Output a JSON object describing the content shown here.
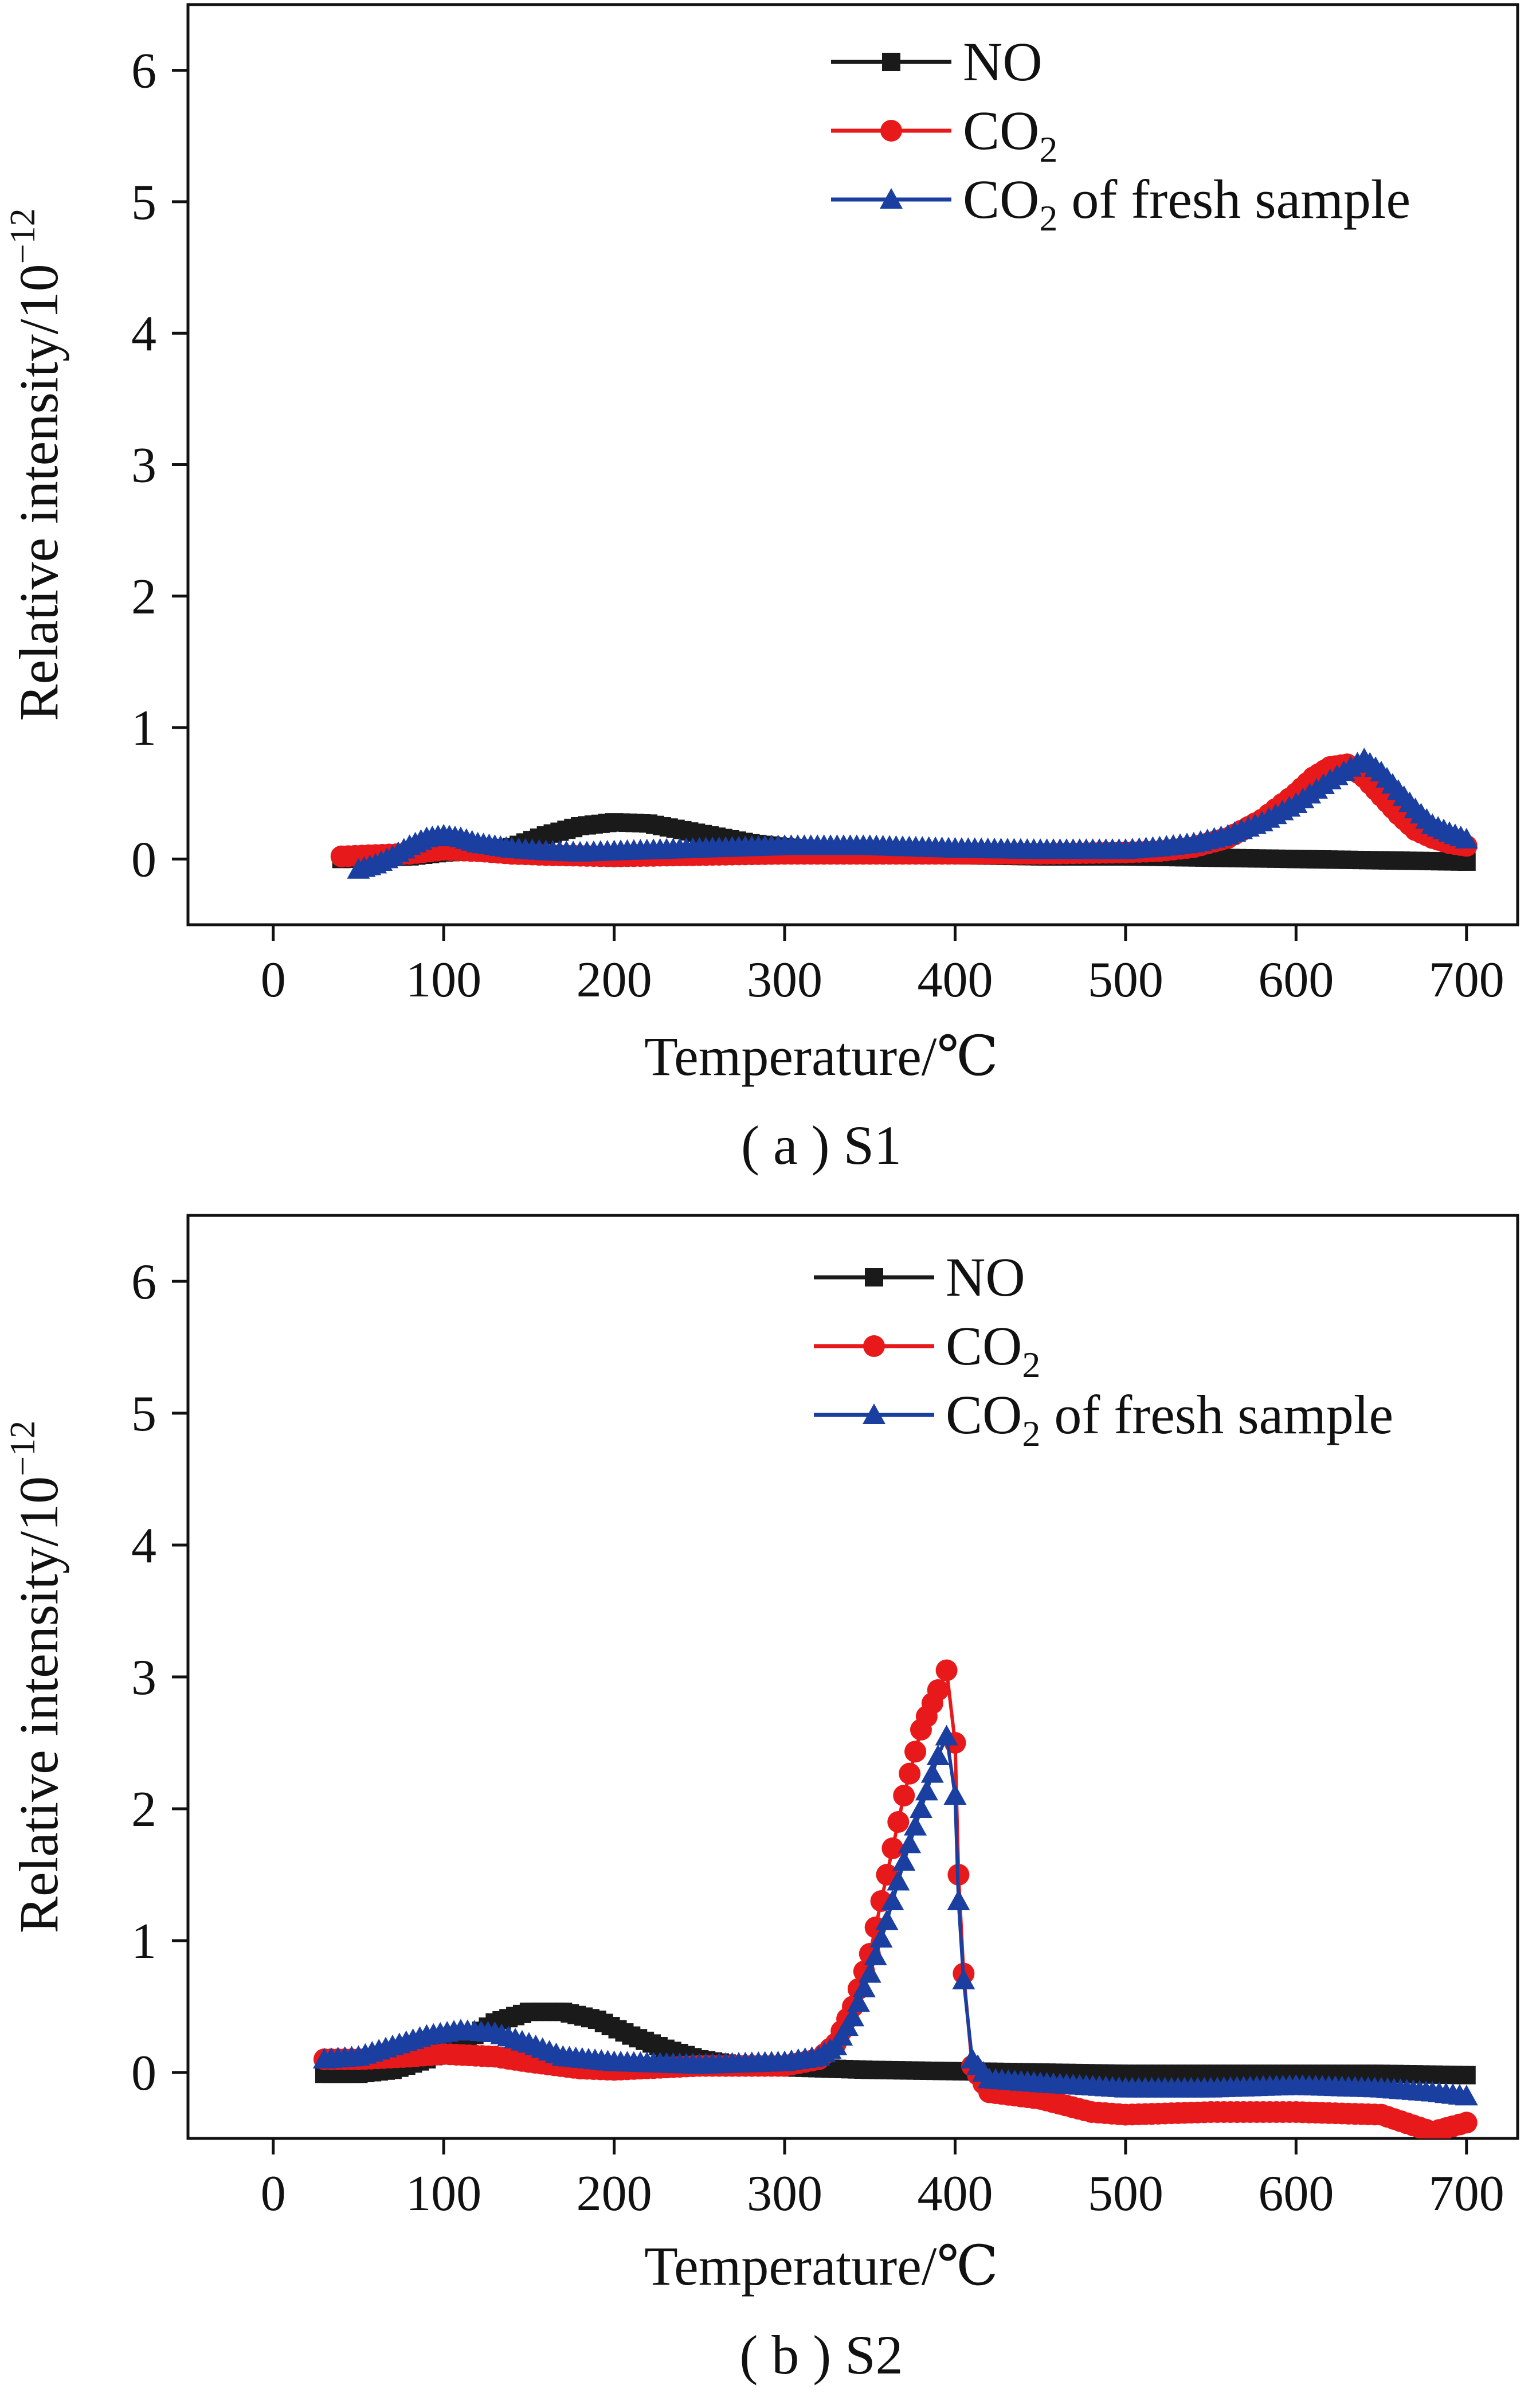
{
  "chart_data": [
    {
      "type": "line",
      "caption": "( a ) S1",
      "xlabel": "Temperature/℃",
      "ylabel": "Relative intensity/10",
      "ylabel_exponent": "−12",
      "xlim": [
        -50,
        730
      ],
      "ylim": [
        -0.5,
        6.5
      ],
      "xticks": [
        0,
        100,
        200,
        300,
        400,
        500,
        600,
        700
      ],
      "yticks": [
        0,
        1,
        2,
        3,
        4,
        5,
        6
      ],
      "grid": false,
      "legend_position": "top-right",
      "series": [
        {
          "name": "NO",
          "name_sub": "",
          "name_rest": "",
          "color": "#1a1a1a",
          "marker": "square",
          "x": [
            40,
            60,
            80,
            100,
            120,
            140,
            160,
            180,
            200,
            220,
            240,
            260,
            280,
            300,
            320,
            340,
            360,
            380,
            400,
            450,
            500,
            550,
            600,
            650,
            700
          ],
          "y": [
            0.0,
            0.01,
            0.02,
            0.05,
            0.06,
            0.09,
            0.18,
            0.25,
            0.28,
            0.27,
            0.22,
            0.17,
            0.12,
            0.09,
            0.07,
            0.05,
            0.04,
            0.03,
            0.03,
            0.02,
            0.02,
            0.01,
            0.0,
            -0.01,
            -0.02
          ]
        },
        {
          "name": "CO",
          "name_sub": "2",
          "name_rest": "",
          "color": "#e8191a",
          "marker": "circle",
          "x": [
            40,
            60,
            80,
            100,
            120,
            140,
            160,
            200,
            250,
            300,
            350,
            400,
            450,
            500,
            520,
            540,
            560,
            580,
            600,
            610,
            620,
            630,
            640,
            650,
            660,
            670,
            680,
            690,
            700
          ],
          "y": [
            0.02,
            0.03,
            0.04,
            0.07,
            0.06,
            0.04,
            0.03,
            0.02,
            0.03,
            0.04,
            0.04,
            0.04,
            0.04,
            0.05,
            0.06,
            0.09,
            0.16,
            0.3,
            0.5,
            0.62,
            0.7,
            0.72,
            0.62,
            0.48,
            0.34,
            0.22,
            0.16,
            0.12,
            0.1
          ]
        },
        {
          "name": "CO",
          "name_sub": "2",
          "name_rest": " of fresh sample",
          "color": "#1a3fa0",
          "marker": "triangle",
          "x": [
            50,
            60,
            70,
            80,
            90,
            100,
            110,
            120,
            130,
            140,
            160,
            180,
            200,
            250,
            300,
            350,
            400,
            450,
            500,
            520,
            540,
            560,
            580,
            600,
            620,
            640,
            650,
            660,
            670,
            680,
            690,
            700
          ],
          "y": [
            -0.08,
            -0.04,
            0.02,
            0.1,
            0.16,
            0.18,
            0.16,
            0.12,
            0.1,
            0.08,
            0.06,
            0.05,
            0.06,
            0.08,
            0.1,
            0.1,
            0.08,
            0.07,
            0.07,
            0.09,
            0.12,
            0.18,
            0.28,
            0.42,
            0.6,
            0.76,
            0.66,
            0.52,
            0.38,
            0.26,
            0.2,
            0.15
          ]
        }
      ]
    },
    {
      "type": "line",
      "caption": "( b ) S2",
      "xlabel": "Temperature/℃",
      "ylabel": "Relative intensity/10",
      "ylabel_exponent": "−12",
      "xlim": [
        -50,
        730
      ],
      "ylim": [
        -0.5,
        6.5
      ],
      "xticks": [
        0,
        100,
        200,
        300,
        400,
        500,
        600,
        700
      ],
      "yticks": [
        0,
        1,
        2,
        3,
        4,
        5,
        6
      ],
      "grid": false,
      "legend_position": "top-right",
      "series": [
        {
          "name": "NO",
          "name_sub": "",
          "name_rest": "",
          "color": "#1a1a1a",
          "marker": "square",
          "x": [
            30,
            50,
            70,
            90,
            110,
            130,
            150,
            170,
            190,
            210,
            230,
            250,
            270,
            300,
            350,
            400,
            450,
            500,
            550,
            600,
            650,
            700
          ],
          "y": [
            -0.01,
            -0.01,
            0.02,
            0.1,
            0.22,
            0.38,
            0.46,
            0.46,
            0.4,
            0.28,
            0.18,
            0.1,
            0.06,
            0.04,
            0.02,
            0.01,
            0.0,
            -0.01,
            -0.01,
            -0.01,
            -0.01,
            -0.02
          ]
        },
        {
          "name": "CO",
          "name_sub": "2",
          "name_rest": "",
          "color": "#e8191a",
          "marker": "circle",
          "x": [
            30,
            50,
            80,
            100,
            130,
            150,
            180,
            200,
            250,
            300,
            320,
            330,
            340,
            350,
            360,
            370,
            380,
            390,
            395,
            400,
            402,
            405,
            410,
            420,
            450,
            480,
            500,
            550,
            600,
            650,
            680,
            700
          ],
          "y": [
            0.1,
            0.1,
            0.12,
            0.14,
            0.12,
            0.08,
            0.03,
            0.02,
            0.05,
            0.05,
            0.1,
            0.22,
            0.5,
            0.9,
            1.5,
            2.1,
            2.6,
            2.9,
            3.05,
            2.5,
            1.5,
            0.75,
            0.05,
            -0.15,
            -0.2,
            -0.3,
            -0.32,
            -0.3,
            -0.3,
            -0.32,
            -0.45,
            -0.38
          ]
        },
        {
          "name": "CO",
          "name_sub": "2",
          "name_rest": " of fresh sample",
          "color": "#1a3fa0",
          "marker": "triangle",
          "x": [
            30,
            50,
            70,
            90,
            110,
            130,
            150,
            170,
            200,
            250,
            300,
            320,
            330,
            340,
            350,
            360,
            370,
            380,
            390,
            395,
            400,
            402,
            405,
            410,
            420,
            450,
            500,
            550,
            600,
            650,
            680,
            700
          ],
          "y": [
            0.1,
            0.12,
            0.2,
            0.28,
            0.32,
            0.3,
            0.22,
            0.12,
            0.08,
            0.06,
            0.08,
            0.12,
            0.2,
            0.42,
            0.75,
            1.15,
            1.6,
            2.0,
            2.4,
            2.55,
            2.1,
            1.3,
            0.7,
            0.1,
            -0.05,
            -0.08,
            -0.12,
            -0.12,
            -0.1,
            -0.12,
            -0.15,
            -0.18
          ]
        }
      ]
    }
  ]
}
